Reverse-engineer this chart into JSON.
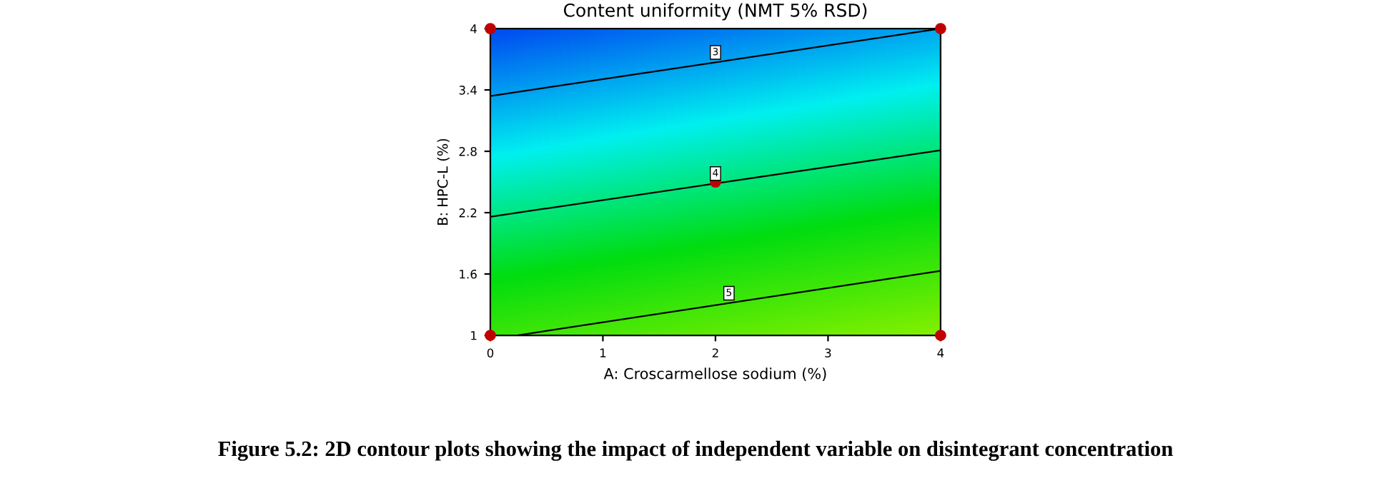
{
  "chart_data": {
    "type": "line",
    "title": "Content uniformity (NMT 5% RSD)",
    "xlabel": "A: Croscarmellose sodium (%)",
    "ylabel": "B: HPC-L (%)",
    "annotations": [
      "Figure 5.2: 2D contour plots showing the impact of independent variable on disintegrant concentration"
    ],
    "series": [
      {
        "name": "3",
        "color": "#000000",
        "x": [
          0,
          4
        ],
        "values": [
          3.34,
          4.0
        ]
      },
      {
        "name": "4",
        "color": "#000000",
        "x": [
          0,
          4
        ],
        "values": [
          2.16,
          2.81
        ]
      },
      {
        "name": "5",
        "color": "#000000",
        "x": [
          0.24,
          4
        ],
        "values": [
          1.0,
          1.63
        ]
      },
      {
        "type": "scatter",
        "marker": "circle",
        "color": "#c00000",
        "x": [
          0,
          4,
          0,
          4,
          2
        ],
        "values": [
          4,
          4,
          1,
          1,
          2.5
        ]
      }
    ],
    "xlim": [
      0,
      4
    ],
    "ylim": [
      1,
      4
    ],
    "xticks": [
      0,
      1,
      2,
      3,
      4
    ],
    "yticks": [
      1,
      1.6,
      2.2,
      2.8,
      3.4,
      4
    ],
    "grid": false,
    "legend": false,
    "line_style": "solid"
  }
}
